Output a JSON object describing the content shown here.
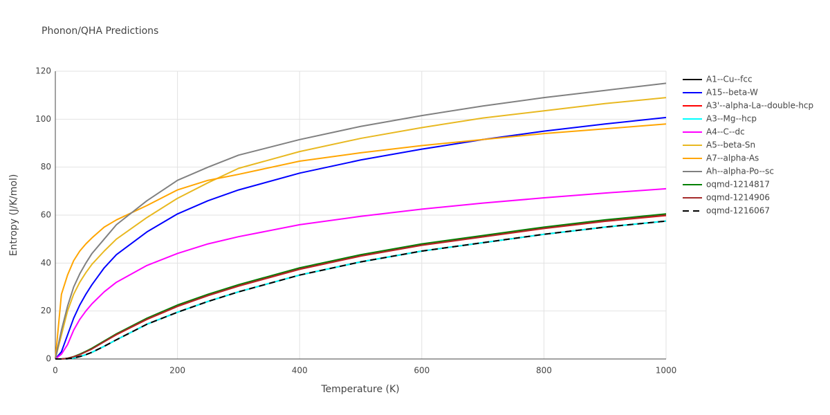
{
  "chart_data": {
    "type": "line",
    "title": "Phonon/QHA Predictions",
    "x_label": "Temperature (K)",
    "y_label": "Entropy (J/K/mol)",
    "x": [
      0,
      10,
      20,
      30,
      40,
      50,
      60,
      80,
      100,
      150,
      200,
      250,
      300,
      400,
      500,
      600,
      700,
      800,
      900,
      1000
    ],
    "xlim": [
      0,
      1000
    ],
    "ylim": [
      0,
      120
    ],
    "xticks": [
      0,
      200,
      400,
      600,
      800,
      1000
    ],
    "yticks": [
      0,
      20,
      40,
      60,
      80,
      100,
      120
    ],
    "grid": true,
    "legend": "right",
    "series": [
      {
        "name": "A1--Cu--fcc",
        "color": "#000000",
        "values": [
          0,
          0,
          0.1,
          0.4,
          1,
          1.8,
          2.8,
          5.3,
          8,
          14.5,
          19.5,
          24,
          28,
          35,
          40.5,
          45,
          48.5,
          52,
          55,
          57.5
        ]
      },
      {
        "name": "A15--beta-W",
        "color": "#0000ff",
        "values": [
          0,
          3,
          10,
          17,
          22.5,
          27,
          31,
          38,
          43.5,
          53,
          60.5,
          66,
          70.5,
          77.5,
          83,
          87.5,
          91.5,
          95,
          98,
          100.7
        ]
      },
      {
        "name": "A3'--alpha-La--double-hcp",
        "color": "#ff0000",
        "values": [
          0,
          0,
          0.25,
          0.9,
          1.8,
          3,
          4.2,
          7.2,
          10.1,
          16.5,
          21.9,
          26.4,
          30.4,
          37.4,
          42.9,
          47.4,
          50.9,
          54.4,
          57.4,
          59.8
        ]
      },
      {
        "name": "A3--Mg--hcp",
        "color": "#00ffff",
        "values": [
          0,
          0,
          0.1,
          0.4,
          1,
          1.8,
          2.8,
          5.3,
          8,
          14.5,
          19.5,
          24,
          28,
          35,
          40.5,
          45,
          48.5,
          52,
          55,
          57.5
        ]
      },
      {
        "name": "A4--C--dc",
        "color": "#ff00ff",
        "values": [
          0,
          2,
          6,
          12,
          16.5,
          20,
          23,
          28,
          32,
          39,
          44,
          48,
          51,
          56,
          59.5,
          62.5,
          65,
          67.2,
          69.2,
          71
        ]
      },
      {
        "name": "A5--beta-Sn",
        "color": "#e8b820",
        "values": [
          0,
          10,
          20,
          27,
          32,
          36,
          39.5,
          45,
          50,
          59,
          67,
          73.5,
          79.5,
          86.5,
          92,
          96.5,
          100.5,
          103.5,
          106.5,
          109
        ]
      },
      {
        "name": "A7--alpha-As",
        "color": "#ffa500",
        "values": [
          0,
          27,
          35,
          41,
          45,
          48,
          50.5,
          55,
          58,
          64,
          70.5,
          74.5,
          77,
          82.5,
          86,
          89,
          91.5,
          94,
          96,
          98
        ]
      },
      {
        "name": "Ah--alpha-Po--sc",
        "color": "#808080",
        "values": [
          0,
          12,
          22,
          30,
          35.5,
          40,
          44,
          50,
          56,
          66,
          74.5,
          80,
          85,
          91.5,
          97,
          101.5,
          105.5,
          109,
          112,
          115
        ]
      },
      {
        "name": "oqmd-1214817",
        "color": "#008000",
        "values": [
          0,
          0,
          0.3,
          1,
          2,
          3.2,
          4.5,
          7.5,
          10.5,
          17,
          22.5,
          27,
          31,
          38,
          43.5,
          48,
          51.5,
          55,
          58,
          60.5
        ]
      },
      {
        "name": "oqmd-1214906",
        "color": "#a52a2a",
        "values": [
          0,
          0,
          0.25,
          0.9,
          1.8,
          3,
          4.2,
          7.2,
          10.2,
          16.6,
          22,
          26.5,
          30.5,
          37.5,
          43,
          47.5,
          51,
          54.5,
          57.5,
          60
        ]
      },
      {
        "name": "oqmd-1216067",
        "color": "#000000",
        "dash": true,
        "values": [
          0,
          0,
          0.1,
          0.4,
          1,
          1.8,
          2.8,
          5.3,
          8,
          14.5,
          19.5,
          24,
          28,
          35,
          40.5,
          45,
          48.5,
          52,
          55,
          57.5
        ]
      }
    ]
  }
}
